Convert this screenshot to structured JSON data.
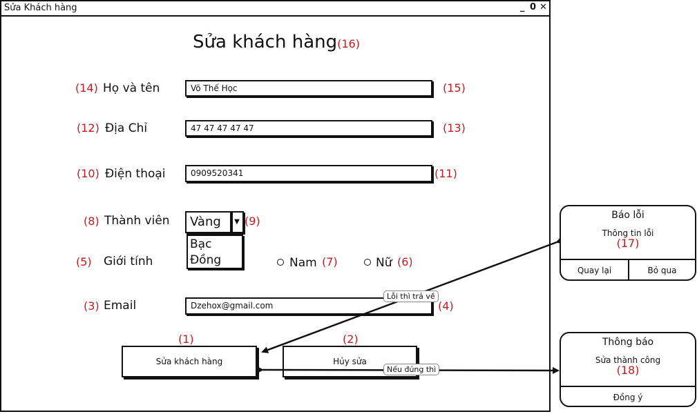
{
  "window": {
    "title": "Sửa Khách hàng",
    "min": "_",
    "max": "0",
    "close": "✕"
  },
  "page_title": "Sửa khách hàng",
  "page_title_num": "(16)",
  "fields": {
    "name": {
      "num": "(14)",
      "label": "Họ và tên",
      "value": "Võ Thế Học",
      "num2": "(15)"
    },
    "addr": {
      "num": "(12)",
      "label": "Địa Chỉ",
      "value": "47 47 47 47 47",
      "num2": "(13)"
    },
    "phone": {
      "num": "(10)",
      "label": "Điện thoại",
      "value": "0909520341",
      "num2": "(11)"
    },
    "email": {
      "num": "(3)",
      "label": "Email",
      "value": "Dzehox@gmail.com",
      "num2": "(4)"
    }
  },
  "member": {
    "num": "(8)",
    "label": "Thành viên",
    "selected": "Vàng",
    "arrow": "▼",
    "num2": "(9)",
    "options": [
      "Bạc",
      "Đồng"
    ]
  },
  "gender": {
    "num": "(5)",
    "label": "Giới tính",
    "male": "Nam",
    "male_num": "(7)",
    "female": "Nữ",
    "female_num": "(6)"
  },
  "buttons": {
    "save": {
      "label": "Sửa khách hàng",
      "num": "(1)"
    },
    "cancel": {
      "label": "Hủy sửa",
      "num": "(2)"
    }
  },
  "callouts": {
    "error": "Lỗi thì trả về",
    "success": "Nếu đúng thì"
  },
  "error_dialog": {
    "title": "Báo lỗi",
    "message": "Thông tin lỗi",
    "num": "(17)",
    "back": "Quay lại",
    "skip": "Bỏ qua"
  },
  "success_dialog": {
    "title": "Thông báo",
    "message": "Sửa thành công",
    "num": "(18)",
    "ok": "Đồng ý"
  }
}
